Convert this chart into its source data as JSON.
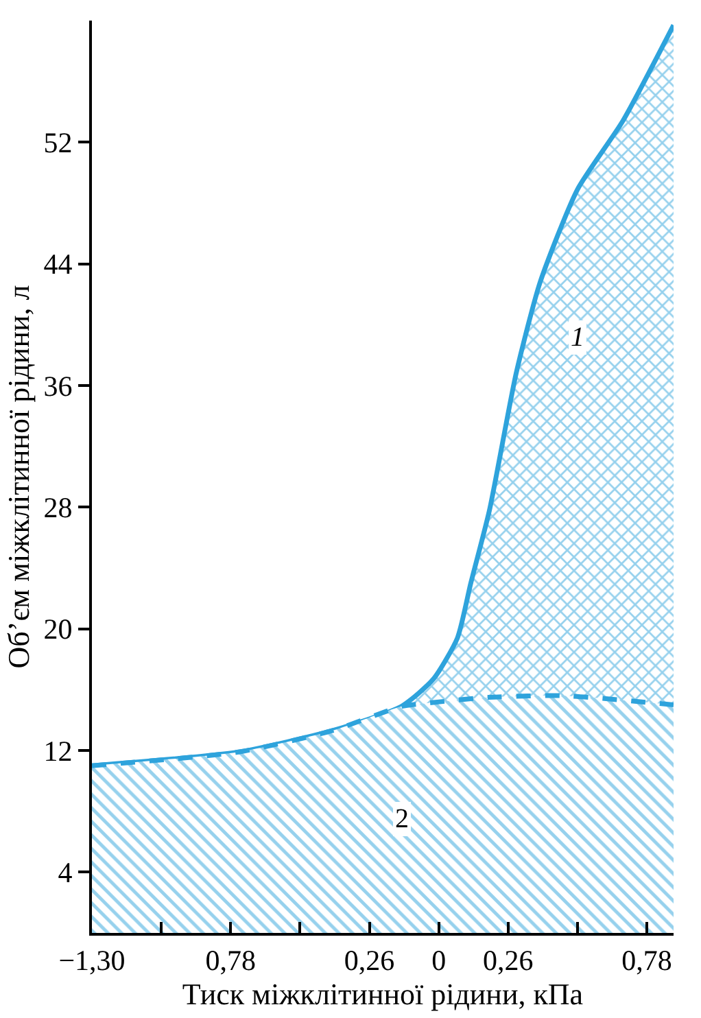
{
  "chart_data": {
    "type": "area",
    "xlabel": "Тиск міжклітинної рідини, кПа",
    "ylabel": "Об’єм міжклітинної рідини, л",
    "xlim": [
      -1.3,
      0.88
    ],
    "ylim": [
      0,
      60
    ],
    "xticks": [
      {
        "value": -1.3,
        "label": "−1,30"
      },
      {
        "value": -1.04,
        "label": null
      },
      {
        "value": -0.78,
        "label": "0,78"
      },
      {
        "value": -0.52,
        "label": null
      },
      {
        "value": -0.26,
        "label": "0,26"
      },
      {
        "value": 0,
        "label": "0"
      },
      {
        "value": 0.26,
        "label": "0,26"
      },
      {
        "value": 0.52,
        "label": null
      },
      {
        "value": 0.78,
        "label": "0,78"
      }
    ],
    "yticks": [
      4,
      12,
      20,
      28,
      36,
      44,
      52
    ],
    "legend": false,
    "series": [
      {
        "name": "1",
        "color": "#2ea3dc",
        "line_style": "solid",
        "x": [
          -1.3,
          -0.75,
          -0.4,
          -0.14,
          -0.02,
          0.07,
          0.12,
          0.19,
          0.29,
          0.38,
          0.52,
          0.69,
          0.88
        ],
        "values": [
          11.0,
          11.9,
          13.3,
          14.9,
          16.7,
          19.4,
          23.0,
          27.8,
          36.8,
          42.8,
          48.9,
          53.4,
          59.7
        ]
      },
      {
        "name": "2",
        "color": "#2ea3dc",
        "line_style": "dashed",
        "x": [
          -1.3,
          -0.75,
          -0.4,
          -0.14,
          -0.05,
          0.19,
          0.47,
          0.88
        ],
        "values": [
          11.0,
          11.9,
          13.3,
          14.9,
          15.1,
          15.5,
          15.6,
          15.0
        ]
      }
    ]
  }
}
